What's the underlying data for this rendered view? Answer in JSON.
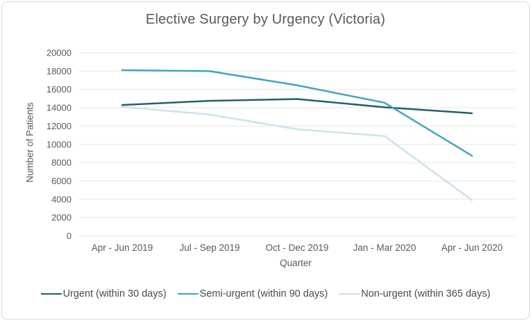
{
  "window": {
    "background": "#ffffff",
    "border_color": "#d9d9d9"
  },
  "chart_data": {
    "type": "line",
    "title": "Elective Surgery by Urgency (Victoria)",
    "xlabel": "Quarter",
    "ylabel": "Number of Patients",
    "categories": [
      "Apr - Jun 2019",
      "Jul - Sep 2019",
      "Oct - Dec 2019",
      "Jan - Mar 2020",
      "Apr - Jun 2020"
    ],
    "series": [
      {
        "name": "Urgent (within 30 days)",
        "color": "#265f6c",
        "values": [
          14300,
          14750,
          14950,
          14050,
          13400
        ]
      },
      {
        "name": "Semi-urgent (within 90 days)",
        "color": "#41a5bc",
        "values": [
          18100,
          18000,
          16450,
          14550,
          8750
        ]
      },
      {
        "name": "Non-urgent (within 365 days)",
        "color": "#cbe3eb",
        "values": [
          14100,
          13250,
          11650,
          10900,
          3900
        ]
      }
    ],
    "ylim": [
      0,
      20000
    ],
    "ytick_step": 2000,
    "grid": true,
    "grid_color": "#e7e7e7",
    "text_color": "#595959",
    "legend_position": "bottom"
  }
}
